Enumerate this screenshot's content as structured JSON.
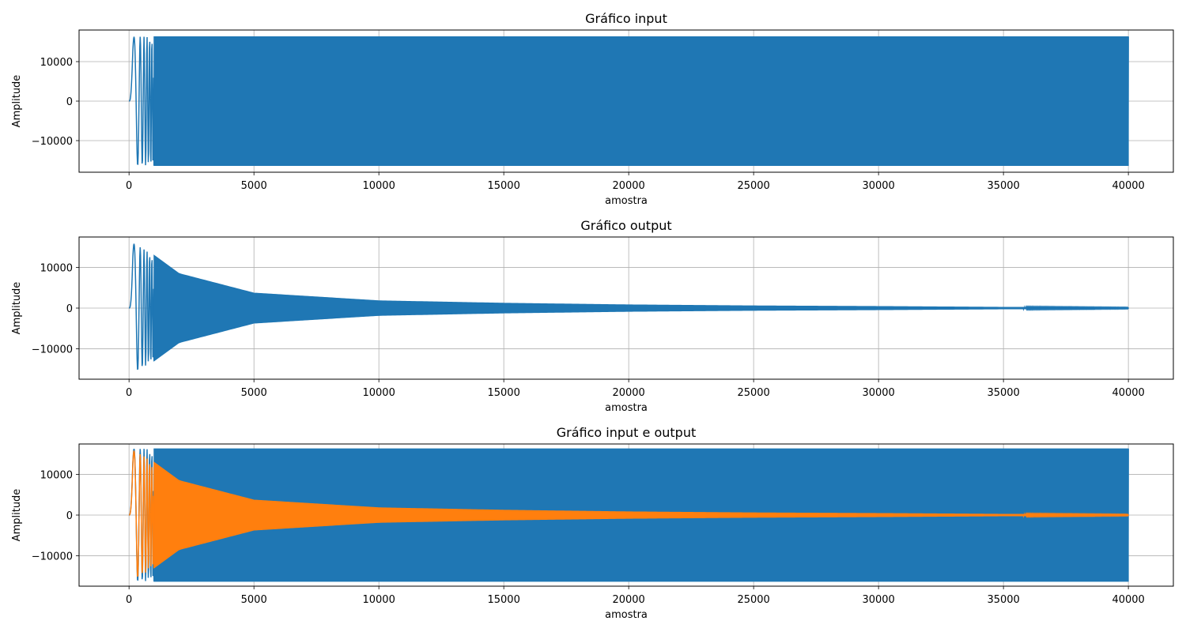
{
  "chart_data": [
    {
      "type": "line",
      "title": "Gráfico input",
      "xlabel": "amostra",
      "ylabel": "Amplitude",
      "xlim": [
        -2000,
        41800
      ],
      "ylim": [
        -18000,
        18000
      ],
      "xticks": [
        0,
        5000,
        10000,
        15000,
        20000,
        25000,
        30000,
        35000,
        40000
      ],
      "yticks": [
        10000,
        0,
        -10000
      ],
      "ytick_labels": [
        "10000",
        "0",
        "−10000"
      ],
      "grid": true,
      "x": [
        0,
        40000
      ],
      "series": [
        {
          "color": "#1f77b4",
          "envelope": {
            "description_points_x": [
              0,
              100,
              150,
              500,
              1000,
              5000,
              10000,
              20000,
              30000,
              40000
            ],
            "amplitude": [
              0,
              12000,
              16300,
              16300,
              16300,
              16300,
              16300,
              16300,
              16300,
              16300
            ]
          }
        }
      ]
    },
    {
      "type": "line",
      "title": "Gráfico output",
      "xlabel": "amostra",
      "ylabel": "Amplitude",
      "xlim": [
        -2000,
        41800
      ],
      "ylim": [
        -17500,
        17500
      ],
      "xticks": [
        0,
        5000,
        10000,
        15000,
        20000,
        25000,
        30000,
        35000,
        40000
      ],
      "yticks": [
        10000,
        0,
        -10000
      ],
      "ytick_labels": [
        "10000",
        "0",
        "−10000"
      ],
      "grid": true,
      "x": [
        0,
        40000
      ],
      "series": [
        {
          "color": "#1f77b4",
          "envelope": {
            "description_points_x": [
              0,
              150,
              300,
              1000,
              2000,
              5000,
              10000,
              15000,
              20000,
              25000,
              30000,
              35000,
              40000
            ],
            "amplitude": [
              0,
              16000,
              15500,
              13000,
              8500,
              3700,
              1800,
              1200,
              800,
              550,
              400,
              200,
              100
            ]
          }
        }
      ]
    },
    {
      "type": "line",
      "title": "Gráfico input e output",
      "xlabel": "amostra",
      "ylabel": "Amplitude",
      "xlim": [
        -2000,
        41800
      ],
      "ylim": [
        -17500,
        17500
      ],
      "xticks": [
        0,
        5000,
        10000,
        15000,
        20000,
        25000,
        30000,
        35000,
        40000
      ],
      "yticks": [
        10000,
        0,
        -10000
      ],
      "ytick_labels": [
        "10000",
        "0",
        "−10000"
      ],
      "grid": true,
      "x": [
        0,
        40000
      ],
      "series": [
        {
          "color": "#1f77b4",
          "envelope": {
            "description_points_x": [
              0,
              100,
              150,
              500,
              1000,
              5000,
              10000,
              20000,
              30000,
              40000
            ],
            "amplitude": [
              0,
              12000,
              16300,
              16300,
              16300,
              16300,
              16300,
              16300,
              16300,
              16300
            ]
          }
        },
        {
          "color": "#ff7f0e",
          "envelope": {
            "description_points_x": [
              0,
              150,
              300,
              1000,
              2000,
              5000,
              10000,
              15000,
              20000,
              25000,
              30000,
              35000,
              40000
            ],
            "amplitude": [
              0,
              16000,
              15500,
              13000,
              8500,
              3700,
              1800,
              1200,
              800,
              550,
              400,
              200,
              100
            ]
          }
        }
      ]
    }
  ]
}
